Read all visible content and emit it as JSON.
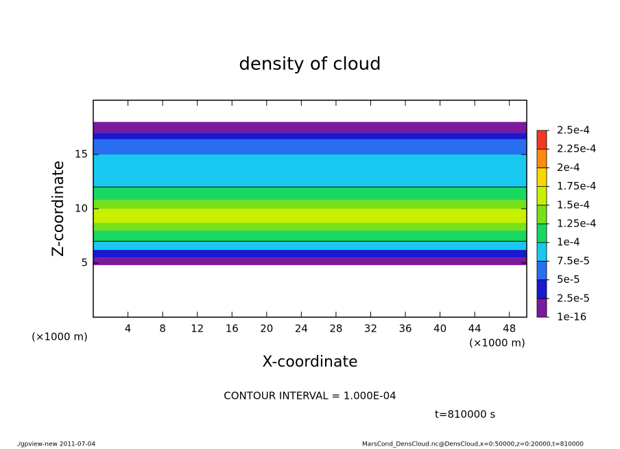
{
  "chart_data": {
    "type": "contour",
    "title": "density of cloud",
    "x_label": "X-coordinate",
    "y_label": "Z-coordinate",
    "x_unit": "(×1000 m)",
    "y_unit": "(×1000 m)",
    "xlim": [
      0,
      50
    ],
    "ylim": [
      0,
      20
    ],
    "xticks": [
      4,
      8,
      12,
      16,
      20,
      24,
      28,
      32,
      36,
      40,
      44,
      48
    ],
    "yticks": [
      5,
      10,
      15
    ],
    "z_edges": [
      4.8,
      5.5,
      6.2,
      7,
      8,
      8.7,
      10,
      10.8,
      12,
      15,
      16.4,
      17,
      18
    ],
    "values": [
      1e-05,
      4e-05,
      9e-05,
      0.00011,
      0.00014,
      0.00016,
      0.00014,
      0.00011,
      8e-05,
      6e-05,
      3e-05,
      1e-05
    ],
    "levels": [
      1e-16,
      {
        "value": 2.5e-05,
        "label": "2.5e-5"
      },
      {
        "value": 5e-05,
        "label": "5e-5"
      },
      {
        "value": 7.5e-05,
        "label": "7.5e-5"
      },
      {
        "value": 0.0001,
        "label": "1e-4"
      },
      {
        "value": 0.000125,
        "label": "1.25e-4"
      },
      {
        "value": 0.00015,
        "label": "1.5e-4"
      },
      {
        "value": 0.000175,
        "label": "1.75e-4"
      },
      {
        "value": 0.0002,
        "label": "2e-4"
      },
      {
        "value": 0.000225,
        "label": "2.25e-4"
      },
      {
        "value": 0.00025,
        "label": "2.5e-4"
      }
    ],
    "colors": [
      "#7a1a9e",
      "#1a1ad0",
      "#2a6ef0",
      "#18c8f0",
      "#18d860",
      "#78e018",
      "#c8f000",
      "#f8d800",
      "#ff8a10",
      "#f03a20"
    ],
    "contour_interval": {
      "value": 0.0001,
      "label": "CONTOUR INTERVAL = 1.000E-04"
    },
    "time_label": "t=810000 s",
    "footer_left": "./gpview-new  2011-07-04",
    "footer_right": "MarsCond_DensCloud.nc@DensCloud,x=0:50000,z=0:20000,t=810000"
  }
}
